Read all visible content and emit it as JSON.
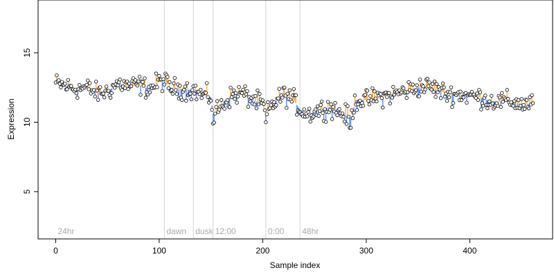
{
  "chart_data": {
    "type": "scatter",
    "title": "",
    "xlabel": "Sample index",
    "ylabel": "Expression",
    "xlim": [
      -17,
      480
    ],
    "ylim": [
      1.6,
      18.8
    ],
    "x_ticks": [
      0,
      100,
      200,
      300,
      400
    ],
    "y_ticks": [
      5,
      10,
      15
    ],
    "grid": false,
    "legend": "none",
    "n_points": 462,
    "segments": [
      {
        "label": "24hr",
        "start": 0,
        "end": 105
      },
      {
        "label": "dawn",
        "start": 105,
        "end": 133
      },
      {
        "label": "dusk",
        "start": 133,
        "end": 152
      },
      {
        "label": "12:00",
        "start": 152,
        "end": 203
      },
      {
        "label": "0:00",
        "start": 203,
        "end": 236
      },
      {
        "label": "48hr",
        "start": 236,
        "end": 462
      }
    ],
    "trend_knots": [
      {
        "x": 0,
        "y": 12.8
      },
      {
        "x": 10,
        "y": 12.6
      },
      {
        "x": 20,
        "y": 12.4
      },
      {
        "x": 30,
        "y": 12.5
      },
      {
        "x": 40,
        "y": 12.1
      },
      {
        "x": 50,
        "y": 12.2
      },
      {
        "x": 60,
        "y": 12.8
      },
      {
        "x": 70,
        "y": 12.6
      },
      {
        "x": 80,
        "y": 12.7
      },
      {
        "x": 90,
        "y": 12.4
      },
      {
        "x": 100,
        "y": 12.9
      },
      {
        "x": 105,
        "y": 13.0
      },
      {
        "x": 110,
        "y": 12.5
      },
      {
        "x": 120,
        "y": 12.4
      },
      {
        "x": 133,
        "y": 12.3
      },
      {
        "x": 140,
        "y": 12.0
      },
      {
        "x": 150,
        "y": 11.8
      },
      {
        "x": 152,
        "y": 10.6
      },
      {
        "x": 160,
        "y": 11.2
      },
      {
        "x": 170,
        "y": 11.9
      },
      {
        "x": 180,
        "y": 12.1
      },
      {
        "x": 190,
        "y": 11.6
      },
      {
        "x": 200,
        "y": 11.3
      },
      {
        "x": 203,
        "y": 10.5
      },
      {
        "x": 210,
        "y": 11.3
      },
      {
        "x": 220,
        "y": 12.0
      },
      {
        "x": 230,
        "y": 11.6
      },
      {
        "x": 236,
        "y": 10.9
      },
      {
        "x": 245,
        "y": 10.6
      },
      {
        "x": 255,
        "y": 10.9
      },
      {
        "x": 265,
        "y": 11.1
      },
      {
        "x": 275,
        "y": 10.7
      },
      {
        "x": 285,
        "y": 10.3
      },
      {
        "x": 290,
        "y": 11.6
      },
      {
        "x": 300,
        "y": 11.6
      },
      {
        "x": 310,
        "y": 11.8
      },
      {
        "x": 320,
        "y": 11.9
      },
      {
        "x": 330,
        "y": 12.1
      },
      {
        "x": 340,
        "y": 12.3
      },
      {
        "x": 350,
        "y": 12.5
      },
      {
        "x": 360,
        "y": 12.6
      },
      {
        "x": 370,
        "y": 12.3
      },
      {
        "x": 380,
        "y": 12.0
      },
      {
        "x": 390,
        "y": 12.0
      },
      {
        "x": 400,
        "y": 11.9
      },
      {
        "x": 410,
        "y": 11.8
      },
      {
        "x": 420,
        "y": 11.5
      },
      {
        "x": 430,
        "y": 11.5
      },
      {
        "x": 440,
        "y": 11.5
      },
      {
        "x": 450,
        "y": 11.3
      },
      {
        "x": 461,
        "y": 11.3
      }
    ],
    "colors": {
      "above_trend": "#ffb347",
      "below_trend": "#6495ed",
      "baseline_gray": "#a9a9a9",
      "point_fill": "#ffffff",
      "point_stroke": "#000000",
      "divider": "#d3d3d3"
    }
  }
}
